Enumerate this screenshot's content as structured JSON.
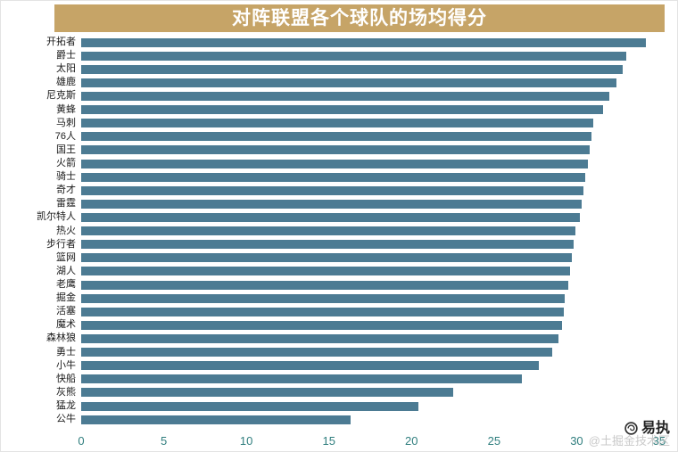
{
  "title": "对阵联盟各个球队的场均得分",
  "watermark": {
    "brand": "易执",
    "faint": "@土掘金技术区"
  },
  "colors": {
    "title_bg": "#c6a467",
    "bar": "#4c7b93",
    "tick_text": "#2f7e7e"
  },
  "chart_data": {
    "type": "bar",
    "orientation": "horizontal",
    "title": "对阵联盟各个球队的场均得分",
    "categories": [
      "开拓者",
      "爵士",
      "太阳",
      "雄鹿",
      "尼克斯",
      "黄蜂",
      "马刺",
      "76人",
      "国王",
      "火箭",
      "骑士",
      "奇才",
      "雷霆",
      "凯尔特人",
      "热火",
      "步行者",
      "篮网",
      "湖人",
      "老鹰",
      "掘金",
      "活塞",
      "魔术",
      "森林狼",
      "勇士",
      "小牛",
      "快船",
      "灰熊",
      "猛龙",
      "公牛"
    ],
    "values": [
      34.2,
      33.0,
      32.8,
      32.4,
      32.0,
      31.6,
      31.0,
      30.9,
      30.8,
      30.7,
      30.5,
      30.4,
      30.3,
      30.2,
      29.9,
      29.8,
      29.7,
      29.6,
      29.5,
      29.3,
      29.2,
      29.1,
      28.9,
      28.5,
      27.7,
      26.7,
      22.5,
      20.4,
      16.3
    ],
    "xlabel": "",
    "ylabel": "",
    "xlim": [
      0,
      35
    ],
    "xticks": [
      0,
      5,
      10,
      15,
      20,
      25,
      30,
      35
    ],
    "grid": false,
    "legend": false
  }
}
